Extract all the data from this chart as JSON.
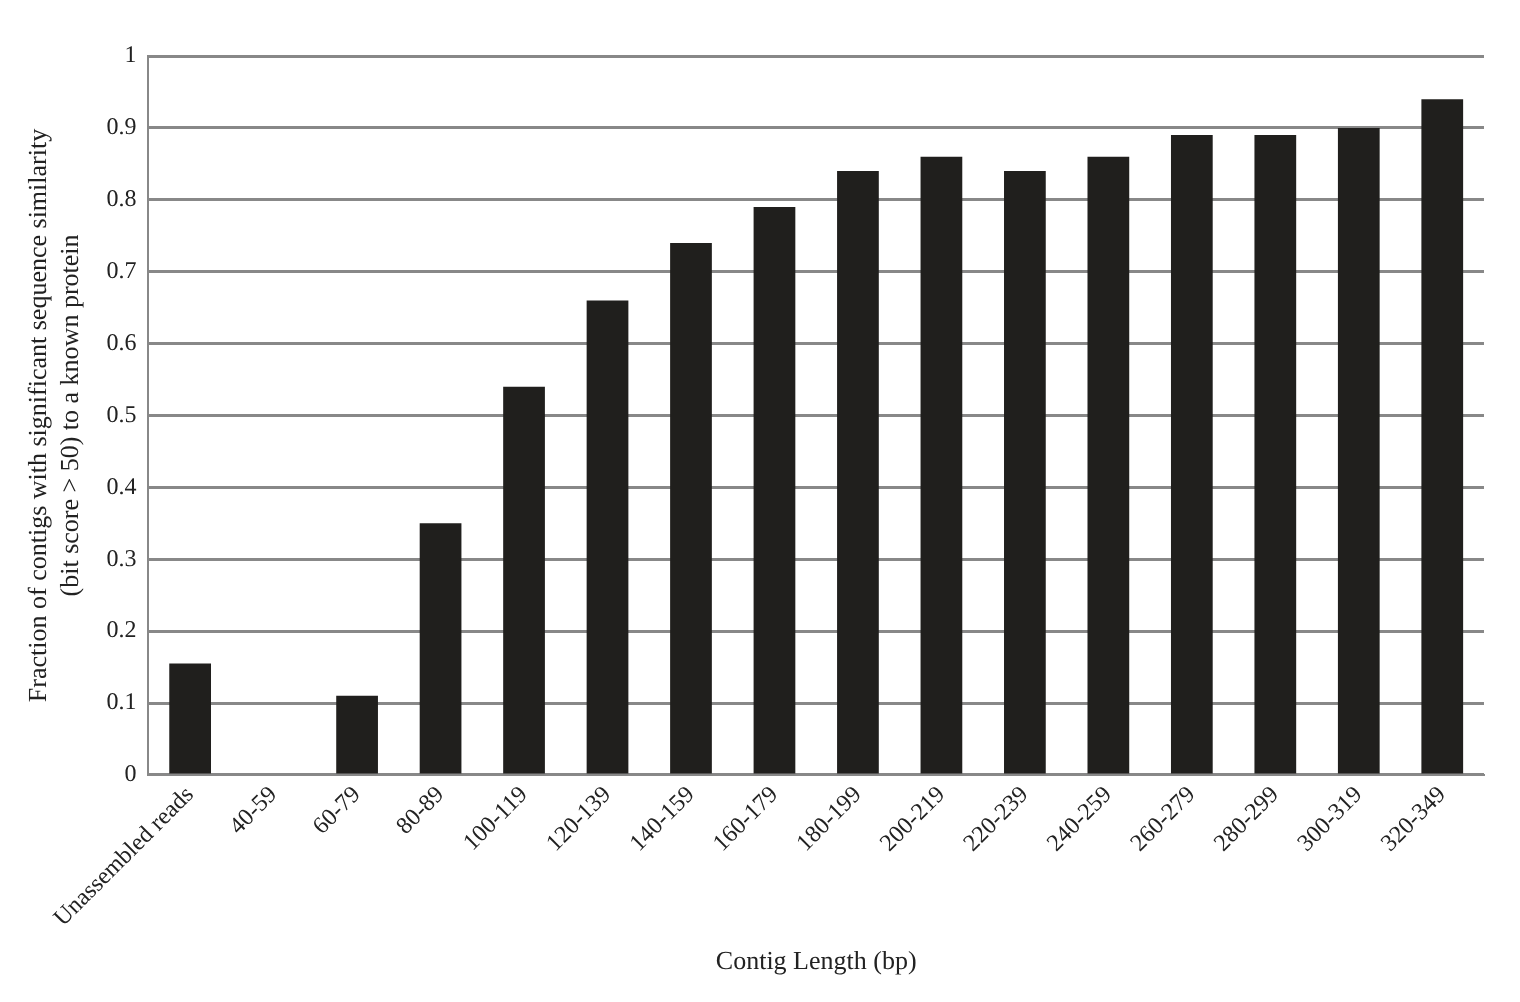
{
  "chart_data": {
    "type": "bar",
    "xlabel": "Contig Length (bp)",
    "ylabel": "Fraction of contigs with significant sequence similarity\n(bit score > 50) to a known protein",
    "categories": [
      "Unassembled reads",
      "40-59",
      "60-79",
      "80-89",
      "100-119",
      "120-139",
      "140-159",
      "160-179",
      "180-199",
      "200-219",
      "220-239",
      "240-259",
      "260-279",
      "280-299",
      "300-319",
      "320-349"
    ],
    "values": [
      0.155,
      0,
      0.11,
      0.35,
      0.54,
      0.66,
      0.74,
      0.79,
      0.84,
      0.86,
      0.84,
      0.86,
      0.89,
      0.89,
      0.9,
      0.94
    ],
    "color": "#201f1d",
    "ylim": [
      0,
      1
    ],
    "yticks": [
      0,
      0.1,
      0.2,
      0.3,
      0.4,
      0.5,
      0.6,
      0.7,
      0.8,
      0.9,
      1
    ],
    "grid": "y",
    "legend": false
  }
}
